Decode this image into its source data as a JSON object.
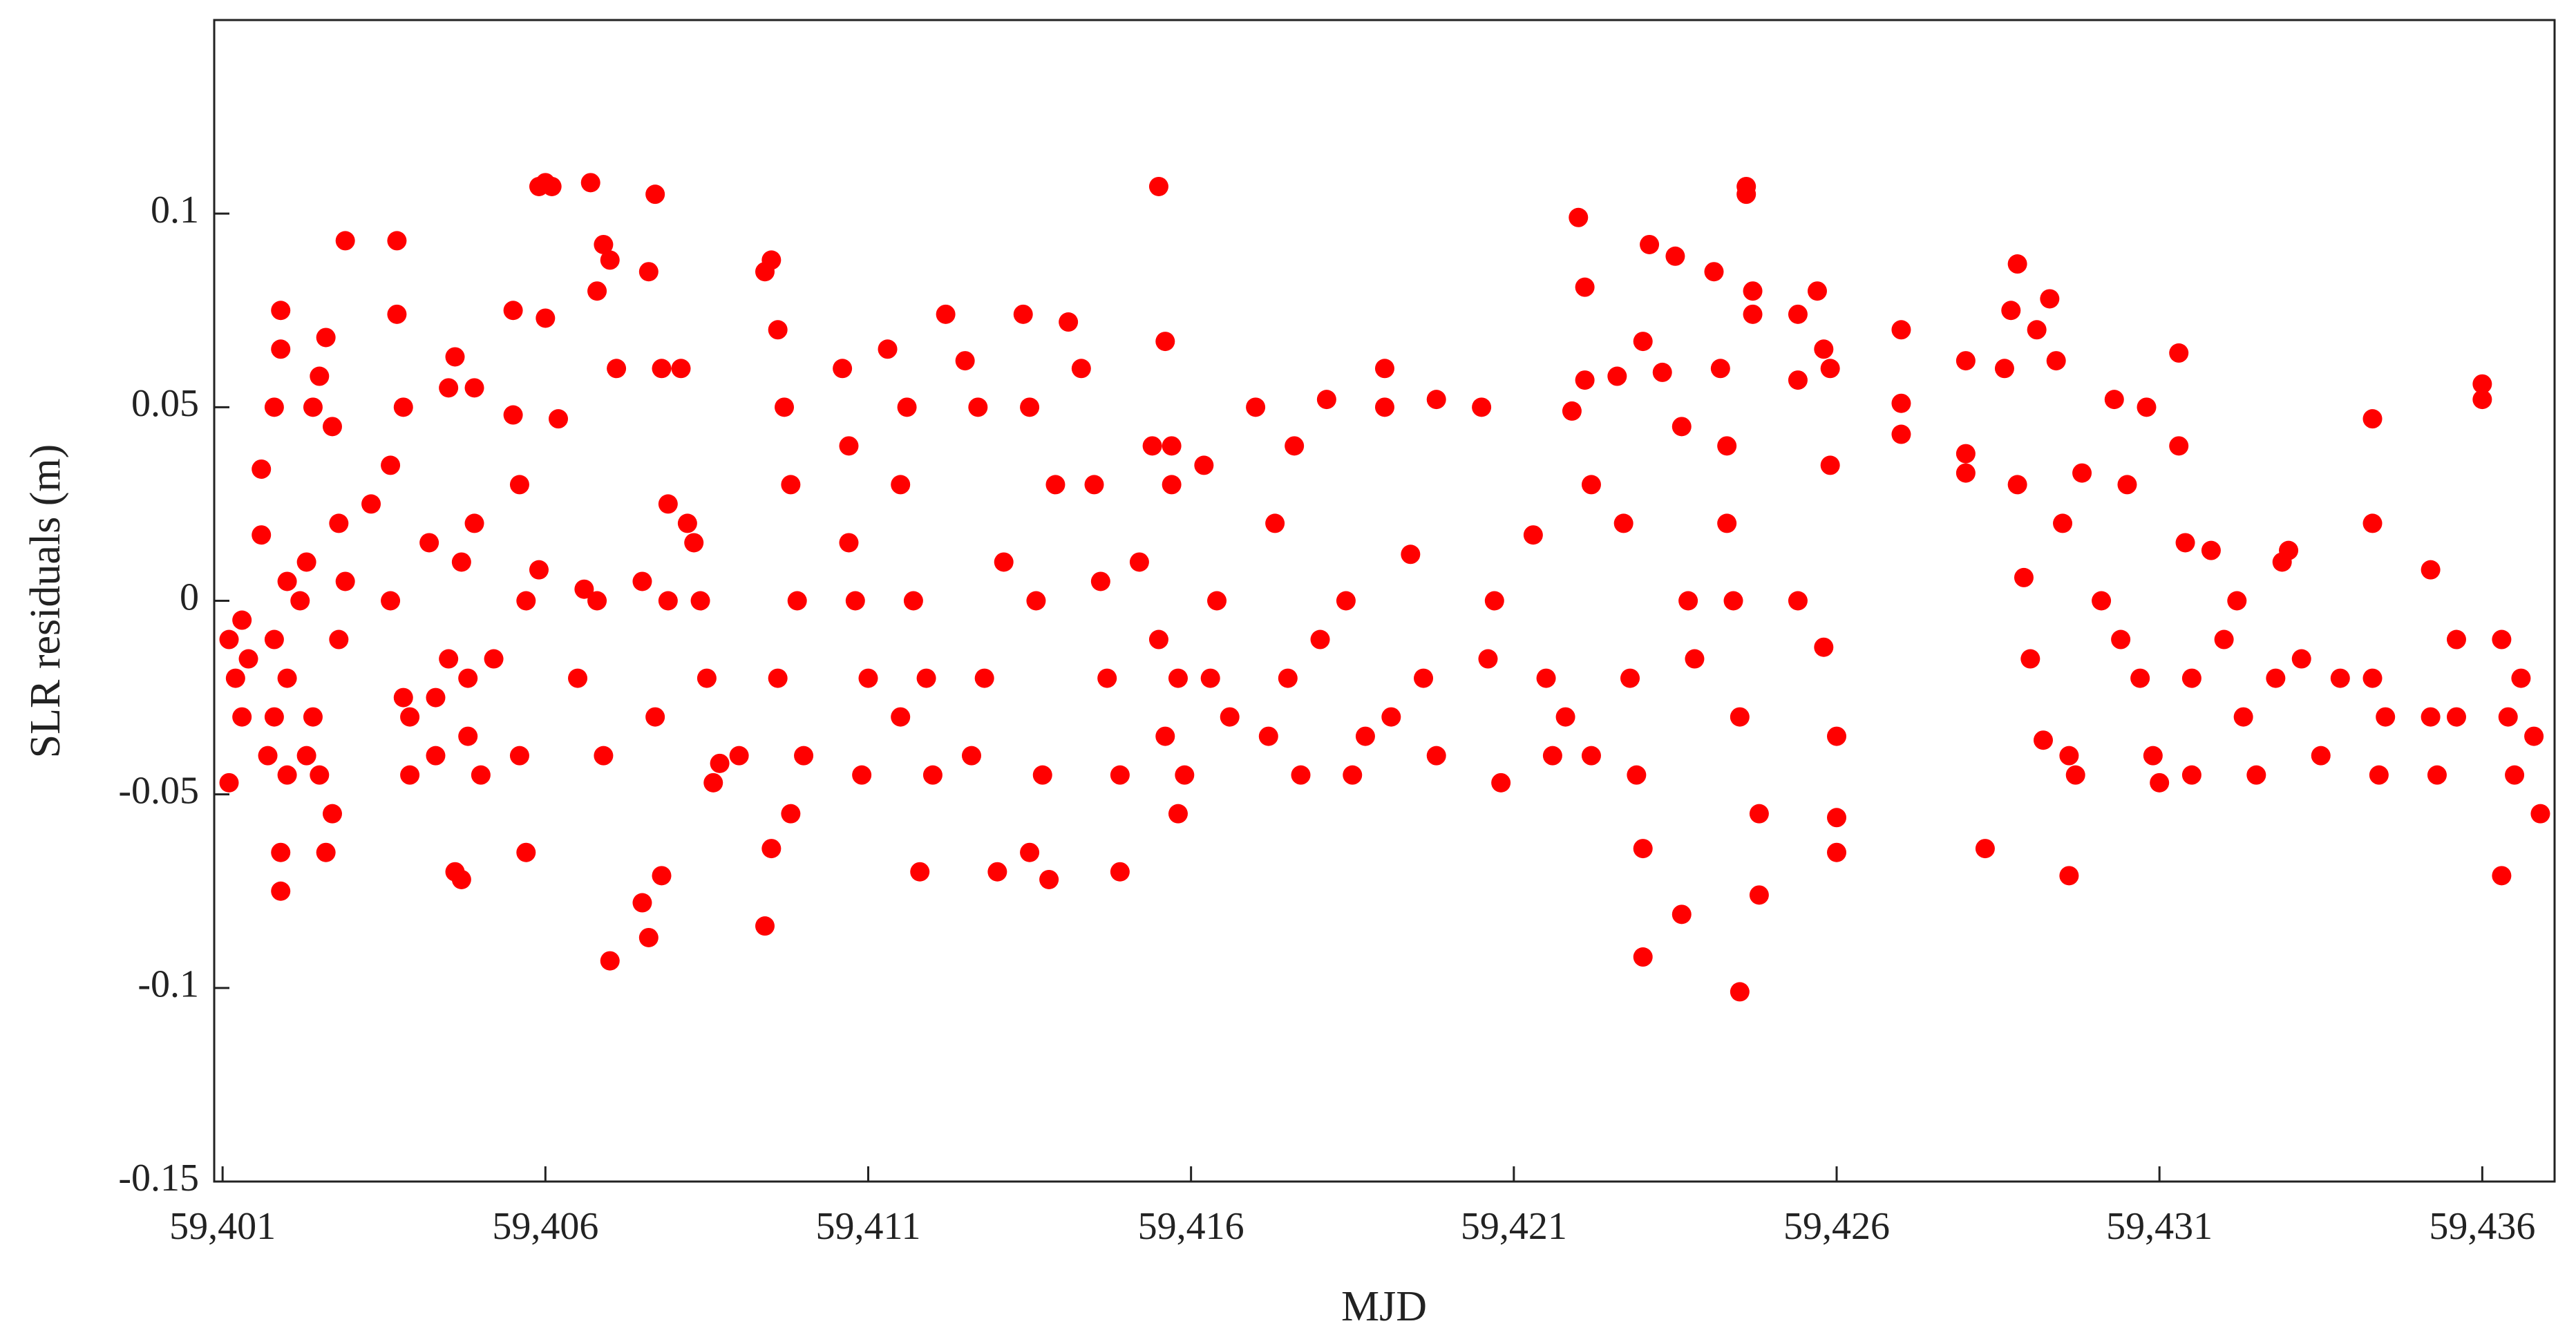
{
  "chart_data": {
    "type": "scatter",
    "x_label": "MJD",
    "y_label": "SLR residuals (m)",
    "xlim": [
      59400.87,
      59437.12
    ],
    "ylim": [
      -0.15,
      0.15
    ],
    "xticks": [
      {
        "value": 59401,
        "label": "59,401"
      },
      {
        "value": 59406,
        "label": "59,406"
      },
      {
        "value": 59411,
        "label": "59,411"
      },
      {
        "value": 59416,
        "label": "59,416"
      },
      {
        "value": 59421,
        "label": "59,421"
      },
      {
        "value": 59426,
        "label": "59,426"
      },
      {
        "value": 59431,
        "label": "59,431"
      },
      {
        "value": 59436,
        "label": "59,436"
      }
    ],
    "yticks": [
      -0.15,
      -0.1,
      -0.05,
      0,
      0.05,
      0.1
    ],
    "color": "#ff0000",
    "x": [
      59401.1,
      59401.1,
      59401.2,
      59401.3,
      59401.3,
      59401.4,
      59401.6,
      59401.6,
      59401.7,
      59401.8,
      59401.8,
      59401.9,
      59401.9,
      59401.9,
      59402.0,
      59402.0,
      59402.0,
      59401.9,
      59401.8,
      59402.2,
      59402.3,
      59402.4,
      59402.5,
      59402.6,
      59402.7,
      59402.8,
      59402.9,
      59402.6,
      59402.7,
      59402.8,
      59402.5,
      59402.4,
      59402.9,
      59402.3,
      59403.3,
      59403.6,
      59403.7,
      59403.7,
      59403.8,
      59403.8,
      59403.9,
      59403.6,
      59403.9,
      59404.2,
      59404.3,
      59404.5,
      59404.6,
      59404.7,
      59404.8,
      59404.9,
      59405.0,
      59404.6,
      59404.7,
      59404.8,
      59404.5,
      59404.9,
      59404.3,
      59405.2,
      59405.5,
      59405.5,
      59405.6,
      59405.6,
      59405.7,
      59405.7,
      59405.9,
      59406.0,
      59406.1,
      59406.0,
      59406.2,
      59405.9,
      59406.5,
      59406.6,
      59406.7,
      59406.8,
      59406.9,
      59407.0,
      59407.0,
      59407.1,
      59406.9,
      59406.8,
      59407.5,
      59407.6,
      59407.7,
      59407.8,
      59407.9,
      59407.7,
      59407.8,
      59407.6,
      59407.5,
      59407.9,
      59408.1,
      59408.2,
      59408.4,
      59408.5,
      59408.6,
      59408.7,
      59408.3,
      59409.0,
      59409.4,
      59409.5,
      59409.6,
      59409.7,
      59409.8,
      59409.9,
      59410.0,
      59409.5,
      59409.6,
      59409.4,
      59409.8,
      59410.6,
      59410.7,
      59410.8,
      59410.9,
      59411.0,
      59410.7,
      59411.3,
      59411.5,
      59411.6,
      59411.7,
      59411.9,
      59412.0,
      59412.2,
      59411.8,
      59411.5,
      59412.5,
      59412.7,
      59412.8,
      59413.0,
      59413.1,
      59412.6,
      59413.4,
      59413.5,
      59413.6,
      59413.7,
      59413.8,
      59413.9,
      59413.5,
      59414.1,
      59414.3,
      59414.5,
      59414.7,
      59414.9,
      59414.6,
      59414.9,
      59415.2,
      59415.4,
      59415.5,
      59415.6,
      59415.7,
      59415.8,
      59415.9,
      59415.5,
      59415.7,
      59415.8,
      59415.6,
      59416.2,
      59416.4,
      59416.6,
      59416.3,
      59417.0,
      59417.3,
      59417.5,
      59417.7,
      59418.0,
      59417.6,
      59417.2,
      59418.1,
      59418.4,
      59418.7,
      59418.5,
      59419.0,
      59419.0,
      59419.1,
      59419.4,
      59419.6,
      59419.8,
      59419.8,
      59420.5,
      59420.6,
      59420.8,
      59420.7,
      59421.3,
      59421.5,
      59421.8,
      59421.6,
      59421.9,
      59422.0,
      59422.1,
      59422.1,
      59422.2,
      59422.2,
      59422.6,
      59422.7,
      59422.8,
      59422.9,
      59423.0,
      59423.0,
      59423.1,
      59423.0,
      59423.3,
      59423.5,
      59423.6,
      59423.7,
      59423.8,
      59423.6,
      59424.1,
      59424.2,
      59424.3,
      59424.4,
      59424.5,
      59424.5,
      59424.6,
      59424.6,
      59424.7,
      59424.7,
      59424.8,
      59424.8,
      59424.3,
      59425.4,
      59425.4,
      59425.4,
      59425.7,
      59425.8,
      59425.9,
      59425.8,
      59425.9,
      59426.0,
      59426.0,
      59426.0,
      59427.0,
      59427.0,
      59427.0,
      59428.0,
      59428.0,
      59428.0,
      59428.3,
      59428.6,
      59428.7,
      59428.8,
      59428.8,
      59428.9,
      59429.0,
      59429.1,
      59429.2,
      59429.3,
      59429.4,
      59429.5,
      59429.6,
      59429.7,
      59429.8,
      59429.6,
      59430.1,
      59430.3,
      59430.5,
      59430.7,
      59430.9,
      59431.0,
      59430.4,
      59430.8,
      59431.3,
      59431.3,
      59431.4,
      59431.5,
      59431.5,
      59431.8,
      59432.0,
      59432.3,
      59432.5,
      59432.8,
      59432.2,
      59432.9,
      59433.2,
      59433.5,
      59433.8,
      59433.0,
      59434.3,
      59434.3,
      59434.3,
      59434.4,
      59434.5,
      59435.2,
      59435.2,
      59435.3,
      59435.6,
      59435.6,
      59436.0,
      59436.0,
      59436.3,
      59436.4,
      59436.5,
      59436.6,
      59436.3,
      59436.9,
      59436.8
    ],
    "values": [
      -0.01,
      -0.047,
      -0.02,
      -0.005,
      -0.03,
      -0.015,
      0.034,
      0.017,
      -0.04,
      0.05,
      -0.03,
      0.075,
      0.065,
      -0.075,
      0.005,
      -0.045,
      -0.02,
      -0.065,
      -0.01,
      0.0,
      -0.04,
      0.05,
      0.058,
      0.068,
      0.045,
      0.02,
      0.093,
      -0.065,
      -0.055,
      -0.01,
      -0.045,
      -0.03,
      0.005,
      0.01,
      0.025,
      0.035,
      0.093,
      0.074,
      0.05,
      -0.025,
      -0.045,
      0.0,
      -0.03,
      0.015,
      -0.04,
      0.055,
      0.063,
      0.01,
      -0.02,
      0.055,
      -0.045,
      -0.07,
      -0.072,
      -0.035,
      -0.015,
      0.02,
      -0.025,
      -0.015,
      0.075,
      0.048,
      0.03,
      -0.04,
      -0.065,
      0.0,
      0.107,
      0.108,
      0.107,
      0.073,
      0.047,
      0.008,
      -0.02,
      0.003,
      0.108,
      0.08,
      0.092,
      0.088,
      -0.093,
      0.06,
      -0.04,
      0.0,
      0.005,
      0.085,
      0.105,
      0.06,
      0.025,
      -0.03,
      -0.071,
      -0.087,
      -0.078,
      0.0,
      0.06,
      0.02,
      0.0,
      -0.02,
      -0.047,
      -0.042,
      0.015,
      -0.04,
      0.085,
      0.088,
      0.07,
      0.05,
      0.03,
      0.0,
      -0.04,
      -0.064,
      -0.02,
      -0.084,
      -0.055,
      0.06,
      0.04,
      0.0,
      -0.045,
      -0.02,
      0.015,
      0.065,
      0.03,
      0.05,
      0.0,
      -0.02,
      -0.045,
      0.074,
      -0.07,
      -0.03,
      0.062,
      0.05,
      -0.02,
      -0.07,
      0.01,
      -0.04,
      0.074,
      0.05,
      0.0,
      -0.045,
      -0.072,
      0.03,
      -0.065,
      0.072,
      0.06,
      0.03,
      -0.02,
      -0.045,
      0.005,
      -0.07,
      0.01,
      0.04,
      0.107,
      0.067,
      0.04,
      -0.02,
      -0.045,
      -0.01,
      0.03,
      -0.055,
      -0.035,
      0.035,
      0.0,
      -0.03,
      -0.02,
      0.05,
      0.02,
      -0.02,
      -0.045,
      -0.01,
      0.04,
      -0.035,
      0.052,
      0.0,
      -0.035,
      -0.045,
      0.06,
      0.05,
      -0.03,
      0.012,
      -0.02,
      -0.04,
      0.052,
      0.05,
      -0.015,
      -0.047,
      0.0,
      0.017,
      -0.02,
      -0.03,
      -0.04,
      0.049,
      0.099,
      0.081,
      0.057,
      0.03,
      -0.04,
      0.058,
      0.02,
      -0.02,
      -0.045,
      -0.064,
      -0.092,
      0.092,
      0.067,
      0.059,
      0.089,
      0.045,
      0.0,
      -0.015,
      -0.081,
      0.085,
      0.06,
      0.04,
      0.0,
      -0.03,
      -0.101,
      0.107,
      0.105,
      0.08,
      0.074,
      -0.055,
      -0.076,
      0.02,
      0.074,
      0.057,
      0.0,
      0.08,
      0.065,
      0.035,
      -0.012,
      0.06,
      -0.035,
      -0.056,
      -0.065,
      0.07,
      0.051,
      0.043,
      0.062,
      0.038,
      0.033,
      -0.064,
      0.06,
      0.075,
      0.087,
      0.03,
      0.006,
      -0.015,
      0.07,
      -0.036,
      0.078,
      0.062,
      0.02,
      -0.04,
      -0.045,
      0.033,
      -0.071,
      0.0,
      0.052,
      0.03,
      -0.02,
      -0.04,
      -0.047,
      -0.01,
      0.05,
      0.064,
      0.04,
      0.015,
      -0.02,
      -0.045,
      0.013,
      -0.01,
      -0.03,
      -0.045,
      -0.02,
      0.0,
      0.01,
      -0.015,
      -0.04,
      -0.02,
      0.013,
      0.047,
      0.02,
      -0.02,
      -0.045,
      -0.03,
      0.008,
      -0.03,
      -0.045,
      -0.01,
      -0.03,
      0.056,
      0.052,
      -0.01,
      -0.03,
      -0.045,
      -0.02,
      -0.071,
      -0.055,
      -0.035
    ]
  }
}
